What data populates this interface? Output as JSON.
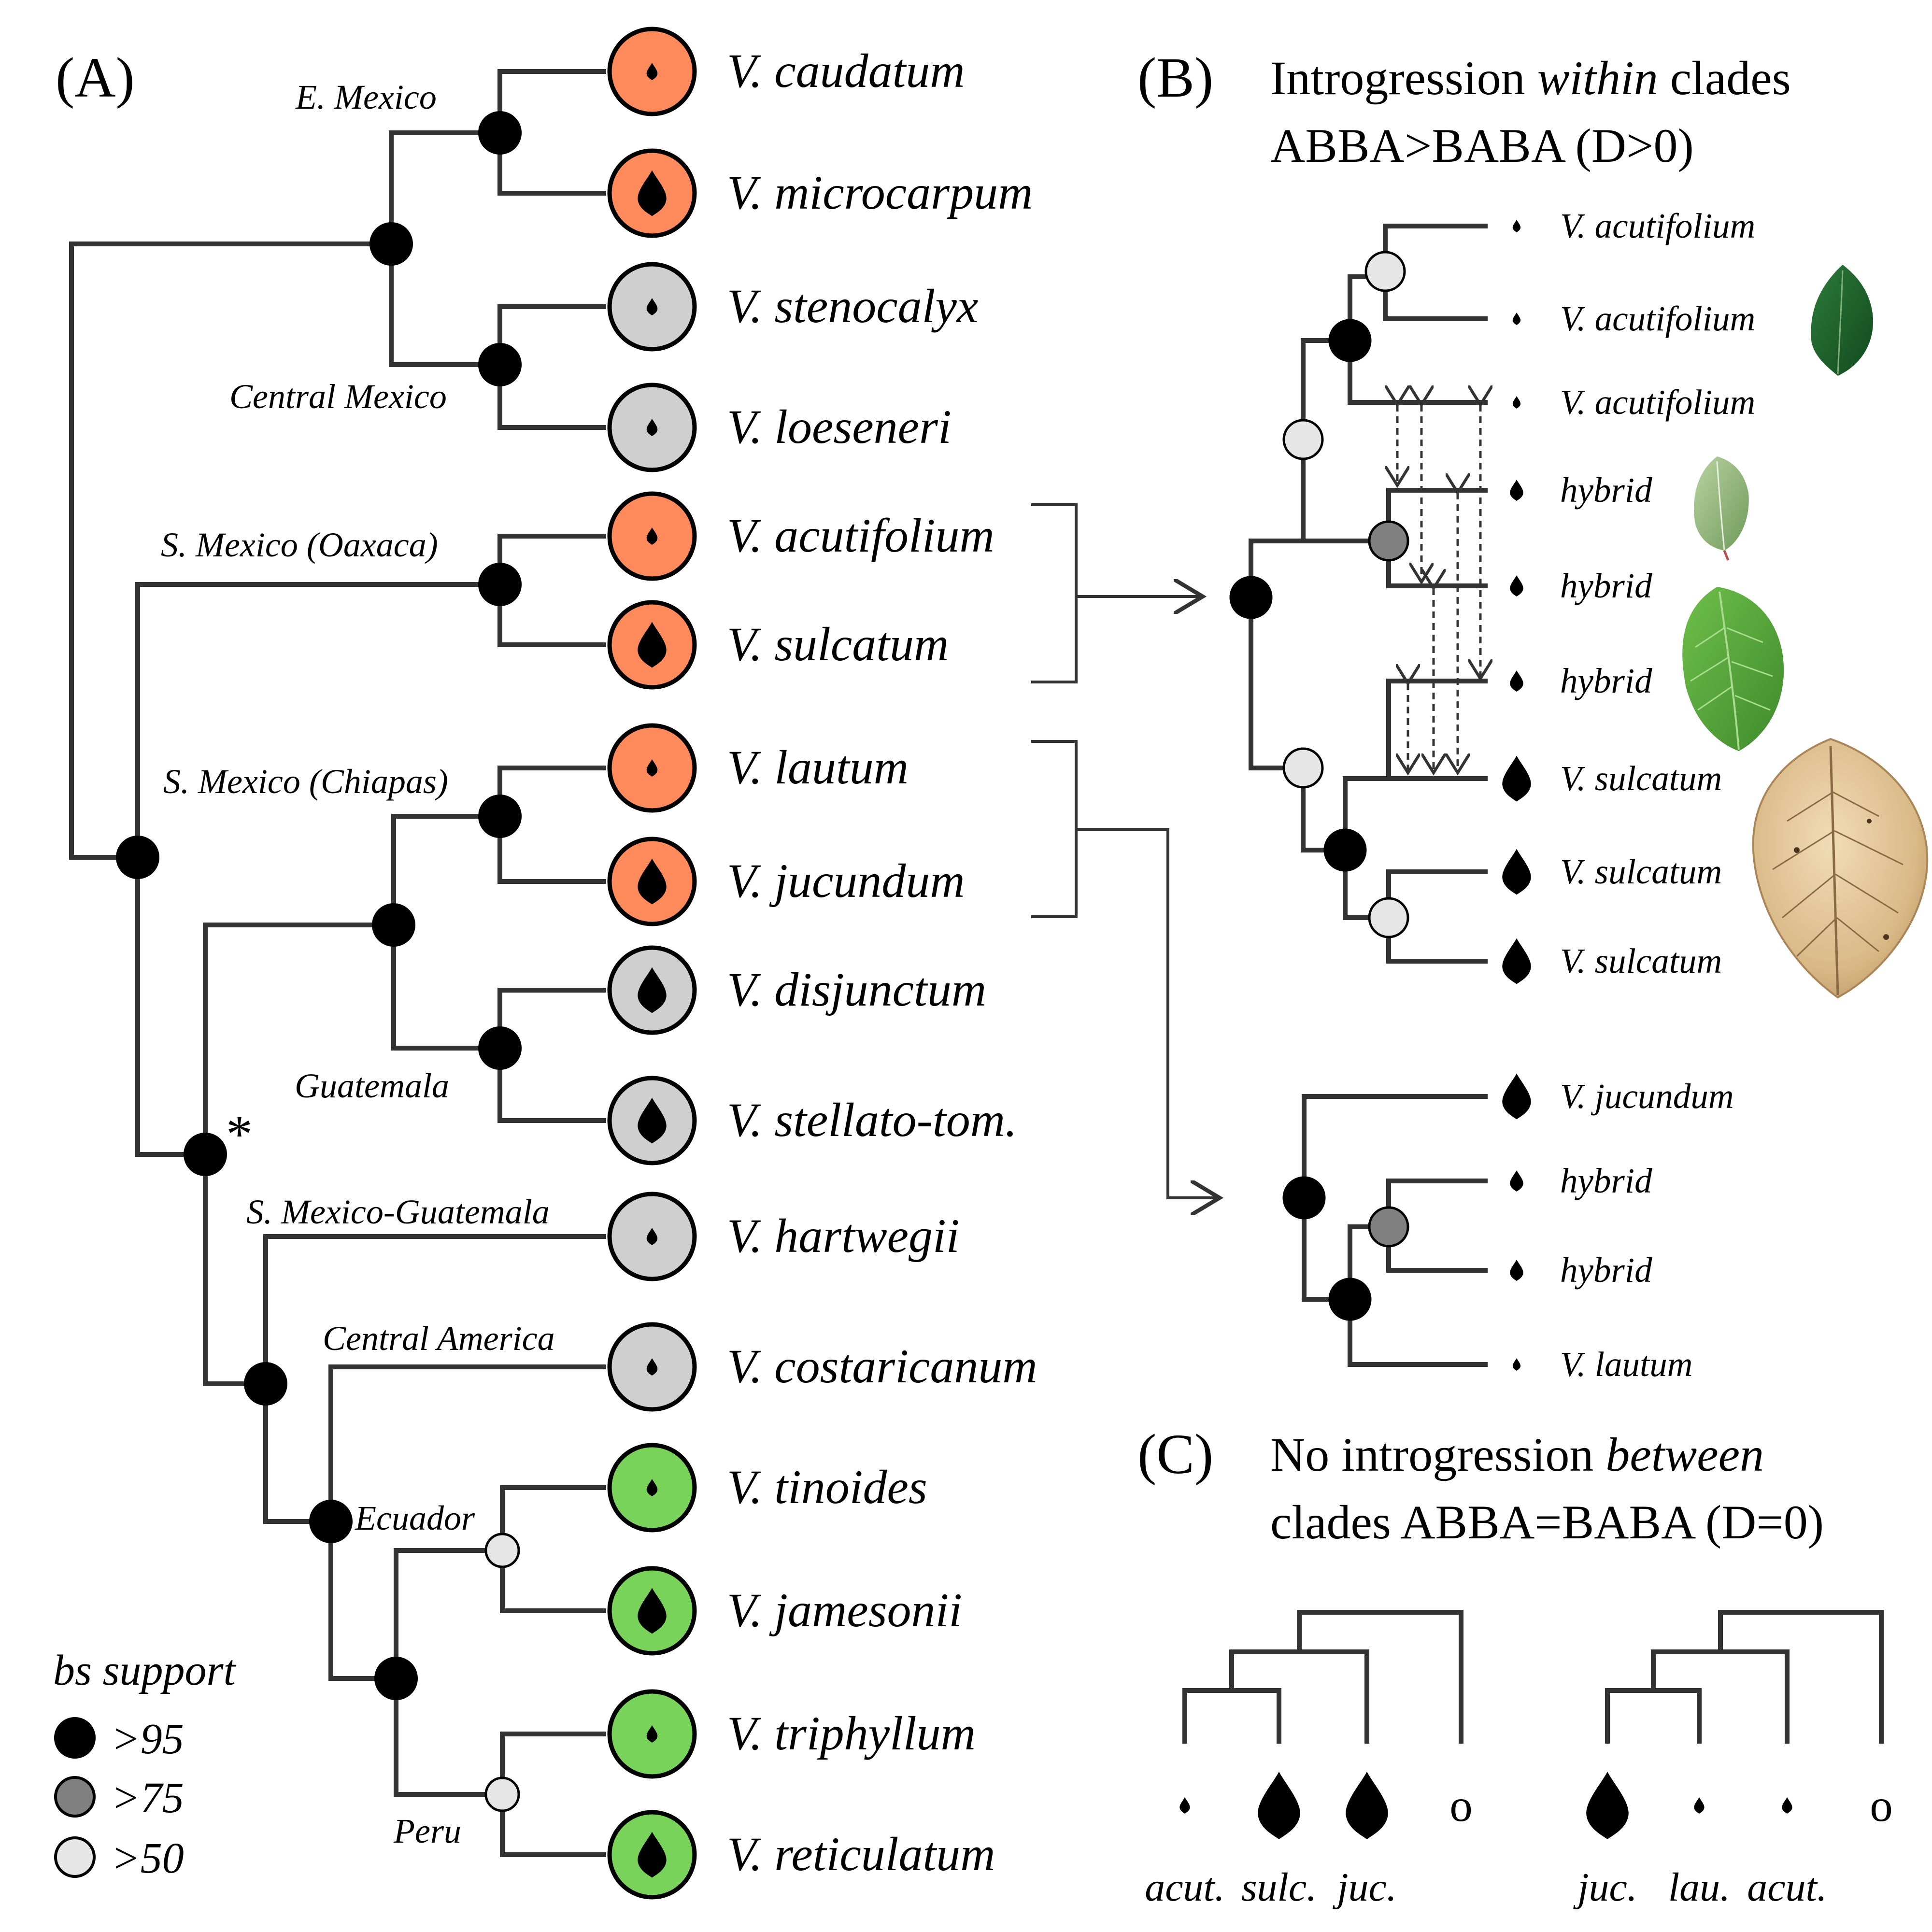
{
  "colors": {
    "orange": "#ff8a5b",
    "gray": "#cfcfcf",
    "green": "#79d25a",
    "node_high": "#000000",
    "node_mid": "#808080",
    "node_low": "#e6e6e6",
    "branch": "#333333"
  },
  "panelA": {
    "label": "(A)",
    "taxa": [
      {
        "name": "V. caudatum",
        "color": "orange",
        "leaf": "small"
      },
      {
        "name": "V. microcarpum",
        "color": "orange",
        "leaf": "large"
      },
      {
        "name": "V. stenocalyx",
        "color": "gray",
        "leaf": "small"
      },
      {
        "name": "V. loeseneri",
        "color": "gray",
        "leaf": "small"
      },
      {
        "name": "V. acutifolium",
        "color": "orange",
        "leaf": "small"
      },
      {
        "name": "V. sulcatum",
        "color": "orange",
        "leaf": "large"
      },
      {
        "name": "V. lautum",
        "color": "orange",
        "leaf": "small"
      },
      {
        "name": "V. jucundum",
        "color": "orange",
        "leaf": "large"
      },
      {
        "name": "V. disjunctum",
        "color": "gray",
        "leaf": "large"
      },
      {
        "name": "V. stellato-tom.",
        "color": "gray",
        "leaf": "large"
      },
      {
        "name": "V. hartwegii",
        "color": "gray",
        "leaf": "small"
      },
      {
        "name": "V. costaricanum",
        "color": "gray",
        "leaf": "small"
      },
      {
        "name": "V. tinoides",
        "color": "green",
        "leaf": "small"
      },
      {
        "name": "V. jamesonii",
        "color": "green",
        "leaf": "large"
      },
      {
        "name": "V. triphyllum",
        "color": "green",
        "leaf": "small"
      },
      {
        "name": "V. reticulatum",
        "color": "green",
        "leaf": "large"
      }
    ],
    "regions": {
      "e_mexico": "E. Mexico",
      "central_mexico": "Central Mexico",
      "oaxaca": "S. Mexico (Oaxaca)",
      "chiapas": "S. Mexico (Chiapas)",
      "guatemala": "Guatemala",
      "s_mexico_guatemala": "S. Mexico-Guatemala",
      "central_america": "Central America",
      "ecuador": "Ecuador",
      "peru": "Peru"
    },
    "asterisk": "*",
    "legend": {
      "title": "bs support",
      "items": [
        {
          "label": ">95",
          "level": "high"
        },
        {
          "label": ">75",
          "level": "mid"
        },
        {
          "label": ">50",
          "level": "low"
        }
      ]
    }
  },
  "panelB": {
    "label": "(B)",
    "heading_pre": "Introgression ",
    "heading_em": "within",
    "heading_post": " clades",
    "heading_line2": "ABBA>BABA (D>0)",
    "tree1_tips": [
      {
        "name": "V. acutifolium",
        "leaf": "tiny"
      },
      {
        "name": "V. acutifolium",
        "leaf": "tiny"
      },
      {
        "name": "V. acutifolium",
        "leaf": "tiny"
      },
      {
        "name": "hybrid",
        "leaf": "small"
      },
      {
        "name": "hybrid",
        "leaf": "small"
      },
      {
        "name": "hybrid",
        "leaf": "small"
      },
      {
        "name": "V. sulcatum",
        "leaf": "large"
      },
      {
        "name": "V. sulcatum",
        "leaf": "large"
      },
      {
        "name": "V. sulcatum",
        "leaf": "large"
      }
    ],
    "tree2_tips": [
      {
        "name": "V. jucundum",
        "leaf": "large"
      },
      {
        "name": "hybrid",
        "leaf": "small"
      },
      {
        "name": "hybrid",
        "leaf": "small"
      },
      {
        "name": "V. lautum",
        "leaf": "tiny"
      }
    ]
  },
  "panelC": {
    "label": "(C)",
    "heading_pre": "No introgression ",
    "heading_em": "between",
    "heading_line2": "clades ABBA=BABA (D=0)",
    "tree1_labels": [
      "acut.",
      "sulc.",
      "juc.",
      ""
    ],
    "tree2_labels": [
      "juc.",
      "lau.",
      "acut.",
      ""
    ],
    "outgroup_mark": "o"
  }
}
